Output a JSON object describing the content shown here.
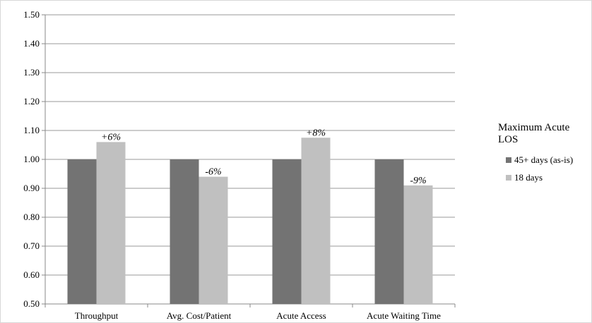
{
  "chart_data": {
    "type": "bar",
    "title": "",
    "xlabel": "",
    "ylabel": "",
    "ylim": [
      0.5,
      1.5
    ],
    "y_ticks": [
      "0.50",
      "0.60",
      "0.70",
      "0.80",
      "0.90",
      "1.00",
      "1.10",
      "1.20",
      "1.30",
      "1.40",
      "1.50"
    ],
    "grid": true,
    "categories": [
      "Throughput",
      "Avg. Cost/Patient",
      "Acute Access",
      "Acute Waiting Time"
    ],
    "series": [
      {
        "name": "45+ days (as-is)",
        "color": "#737373",
        "values": [
          1.0,
          1.0,
          1.0,
          1.0
        ]
      },
      {
        "name": "18 days",
        "color": "#c0c0c0",
        "values": [
          1.06,
          0.94,
          1.075,
          0.91
        ],
        "labels": [
          "+6%",
          "-6%",
          "+8%",
          "-9%"
        ]
      }
    ],
    "legend": {
      "title": "Maximum Acute LOS",
      "placement": "right"
    }
  }
}
